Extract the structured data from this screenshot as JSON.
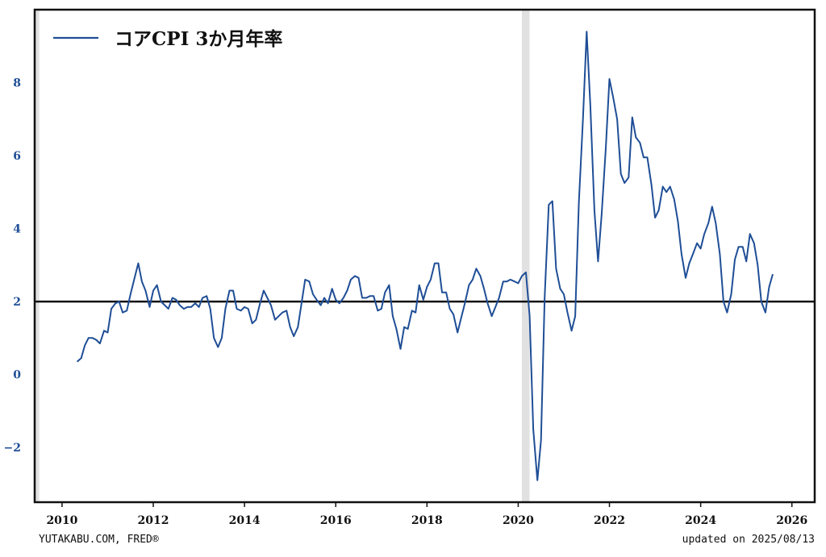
{
  "chart_data": {
    "type": "line",
    "title": "",
    "xlabel": "",
    "ylabel": "",
    "xlim": [
      2009.4,
      2026.5
    ],
    "ylim": [
      -3.5,
      10.0
    ],
    "yticks": [
      -2,
      0,
      2,
      4,
      6,
      8
    ],
    "xticks": [
      2010,
      2012,
      2014,
      2016,
      2018,
      2020,
      2022,
      2024,
      2026
    ],
    "ytick_labels": [
      "−2",
      "0",
      "2",
      "4",
      "6",
      "8"
    ],
    "xtick_labels": [
      "2010",
      "2012",
      "2014",
      "2016",
      "2018",
      "2020",
      "2022",
      "2024",
      "2026"
    ],
    "legend": {
      "label": "コアCPI 3か月年率",
      "position": "top-left"
    },
    "reference_line": {
      "y": 2,
      "color": "#111111"
    },
    "recessions": [
      [
        2009.4,
        2009.5
      ],
      [
        2020.08,
        2020.25
      ]
    ],
    "grid": false,
    "series": [
      {
        "name": "コアCPI 3か月年率",
        "color": "#1f4e96",
        "x": [
          2010.33,
          2010.42,
          2010.5,
          2010.58,
          2010.67,
          2010.75,
          2010.83,
          2010.92,
          2011.0,
          2011.08,
          2011.17,
          2011.25,
          2011.33,
          2011.42,
          2011.5,
          2011.58,
          2011.67,
          2011.75,
          2011.83,
          2011.92,
          2012.0,
          2012.08,
          2012.17,
          2012.25,
          2012.33,
          2012.42,
          2012.5,
          2012.58,
          2012.67,
          2012.75,
          2012.83,
          2012.92,
          2013.0,
          2013.08,
          2013.17,
          2013.25,
          2013.33,
          2013.42,
          2013.5,
          2013.58,
          2013.67,
          2013.75,
          2013.83,
          2013.92,
          2014.0,
          2014.08,
          2014.17,
          2014.25,
          2014.33,
          2014.42,
          2014.5,
          2014.58,
          2014.67,
          2014.75,
          2014.83,
          2014.92,
          2015.0,
          2015.08,
          2015.17,
          2015.25,
          2015.33,
          2015.42,
          2015.5,
          2015.58,
          2015.67,
          2015.75,
          2015.83,
          2015.92,
          2016.0,
          2016.08,
          2016.17,
          2016.25,
          2016.33,
          2016.42,
          2016.5,
          2016.58,
          2016.67,
          2016.75,
          2016.83,
          2016.92,
          2017.0,
          2017.08,
          2017.17,
          2017.25,
          2017.33,
          2017.42,
          2017.5,
          2017.58,
          2017.67,
          2017.75,
          2017.83,
          2017.92,
          2018.0,
          2018.08,
          2018.17,
          2018.25,
          2018.33,
          2018.42,
          2018.5,
          2018.58,
          2018.67,
          2018.75,
          2018.83,
          2018.92,
          2019.0,
          2019.08,
          2019.17,
          2019.25,
          2019.33,
          2019.42,
          2019.5,
          2019.58,
          2019.67,
          2019.75,
          2019.83,
          2019.92,
          2020.0,
          2020.08,
          2020.17,
          2020.25,
          2020.33,
          2020.42,
          2020.5,
          2020.58,
          2020.67,
          2020.75,
          2020.83,
          2020.92,
          2021.0,
          2021.08,
          2021.17,
          2021.25,
          2021.33,
          2021.42,
          2021.5,
          2021.58,
          2021.67,
          2021.75,
          2021.83,
          2021.92,
          2022.0,
          2022.08,
          2022.17,
          2022.25,
          2022.33,
          2022.42,
          2022.5,
          2022.58,
          2022.67,
          2022.75,
          2022.83,
          2022.92,
          2023.0,
          2023.08,
          2023.17,
          2023.25,
          2023.33,
          2023.42,
          2023.5,
          2023.58,
          2023.67,
          2023.75,
          2023.83,
          2023.92,
          2024.0,
          2024.08,
          2024.17,
          2024.25,
          2024.33,
          2024.42,
          2024.5,
          2024.58,
          2024.67,
          2024.75,
          2024.83,
          2024.92,
          2025.0,
          2025.08,
          2025.17,
          2025.25,
          2025.33,
          2025.42,
          2025.5,
          2025.58
        ],
        "y": [
          0.35,
          0.45,
          0.8,
          1.0,
          1.0,
          0.95,
          0.85,
          1.2,
          1.15,
          1.8,
          1.95,
          2.0,
          1.7,
          1.75,
          2.2,
          2.6,
          3.05,
          2.55,
          2.3,
          1.85,
          2.3,
          2.45,
          2.0,
          1.9,
          1.8,
          2.1,
          2.05,
          1.9,
          1.8,
          1.85,
          1.85,
          1.95,
          1.85,
          2.1,
          2.15,
          1.8,
          1.0,
          0.75,
          1.0,
          1.8,
          2.3,
          2.3,
          1.8,
          1.75,
          1.85,
          1.8,
          1.4,
          1.5,
          1.9,
          2.3,
          2.1,
          1.9,
          1.5,
          1.6,
          1.7,
          1.75,
          1.3,
          1.05,
          1.3,
          1.95,
          2.6,
          2.55,
          2.2,
          2.05,
          1.9,
          2.1,
          1.95,
          2.35,
          2.05,
          1.95,
          2.1,
          2.3,
          2.6,
          2.7,
          2.65,
          2.1,
          2.1,
          2.15,
          2.15,
          1.75,
          1.8,
          2.25,
          2.45,
          1.6,
          1.25,
          0.7,
          1.3,
          1.25,
          1.75,
          1.7,
          2.45,
          2.05,
          2.4,
          2.6,
          3.05,
          3.05,
          2.25,
          2.25,
          1.8,
          1.65,
          1.15,
          1.55,
          1.95,
          2.45,
          2.6,
          2.9,
          2.7,
          2.35,
          1.95,
          1.6,
          1.85,
          2.1,
          2.55,
          2.55,
          2.6,
          2.55,
          2.5,
          2.7,
          2.8,
          1.6,
          -1.5,
          -2.9,
          -1.8,
          2.1,
          4.65,
          4.75,
          2.9,
          2.35,
          2.2,
          1.7,
          1.2,
          1.6,
          4.7,
          7.0,
          9.4,
          7.4,
          4.5,
          3.1,
          4.4,
          6.2,
          8.1,
          7.6,
          7.0,
          5.5,
          5.25,
          5.4,
          7.05,
          6.5,
          6.35,
          5.95,
          5.95,
          5.2,
          4.3,
          4.5,
          5.15,
          5.0,
          5.15,
          4.8,
          4.2,
          3.3,
          2.65,
          3.05,
          3.3,
          3.6,
          3.45,
          3.85,
          4.15,
          4.6,
          4.15,
          3.3,
          2.0,
          1.7,
          2.2,
          3.15,
          3.5,
          3.5,
          3.1,
          3.85,
          3.6,
          3.0,
          2.0,
          1.7,
          2.4,
          2.75
        ]
      }
    ]
  },
  "footer": {
    "left": "YUTAKABU.COM, FRED®",
    "right": "updated on 2025/08/13"
  }
}
